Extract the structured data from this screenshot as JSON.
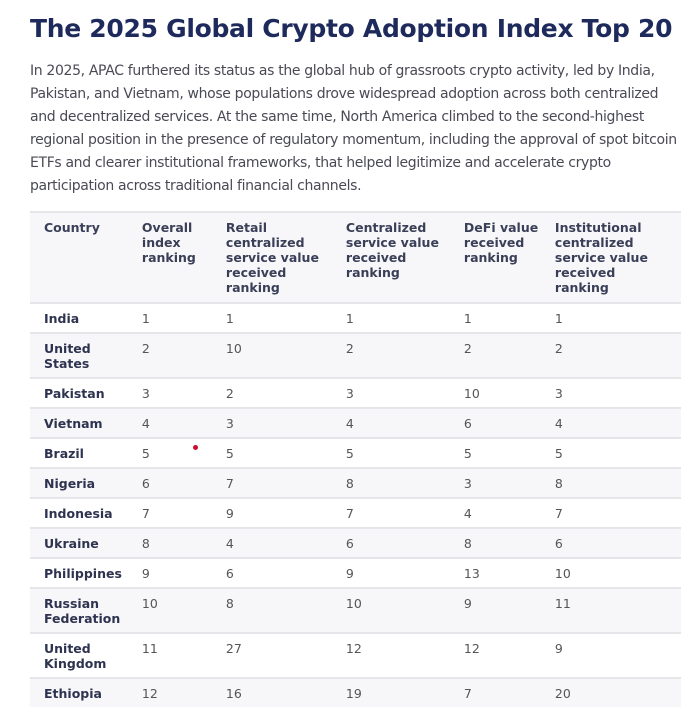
{
  "title": "The 2025 Global Crypto Adoption Index Top 20",
  "intro": "In 2025, APAC furthered its status as the global hub of grassroots crypto activity, led by India, Pakistan, and Vietnam, whose populations drove widespread adoption across both centralized and decentralized services. At the same time, North America climbed to the second-highest regional position in the presence of regulatory momentum, including the approval of spot bitcoin ETFs and clearer institutional frameworks, that helped legitimize and accelerate crypto participation across traditional financial channels.",
  "table": {
    "headers": [
      "Country",
      "Overall index ranking",
      "Retail centralized service value received ranking",
      "Centralized service value received ranking",
      "DeFi value received ranking",
      "Institutional centralized service value received ranking"
    ],
    "rows": [
      [
        "India",
        "1",
        "1",
        "1",
        "1",
        "1"
      ],
      [
        "United States",
        "2",
        "10",
        "2",
        "2",
        "2"
      ],
      [
        "Pakistan",
        "3",
        "2",
        "3",
        "10",
        "3"
      ],
      [
        "Vietnam",
        "4",
        "3",
        "4",
        "6",
        "4"
      ],
      [
        "Brazil",
        "5",
        "5",
        "5",
        "5",
        "5"
      ],
      [
        "Nigeria",
        "6",
        "7",
        "8",
        "3",
        "8"
      ],
      [
        "Indonesia",
        "7",
        "9",
        "7",
        "4",
        "7"
      ],
      [
        "Ukraine",
        "8",
        "4",
        "6",
        "8",
        "6"
      ],
      [
        "Philippines",
        "9",
        "6",
        "9",
        "13",
        "10"
      ],
      [
        "Russian Federation",
        "10",
        "8",
        "10",
        "9",
        "11"
      ],
      [
        "United Kingdom",
        "11",
        "27",
        "12",
        "12",
        "9"
      ],
      [
        "Ethiopia",
        "12",
        "16",
        "19",
        "7",
        "20"
      ]
    ]
  },
  "colors": {
    "title": "#1d2a5b",
    "marker": "#c8102e"
  }
}
